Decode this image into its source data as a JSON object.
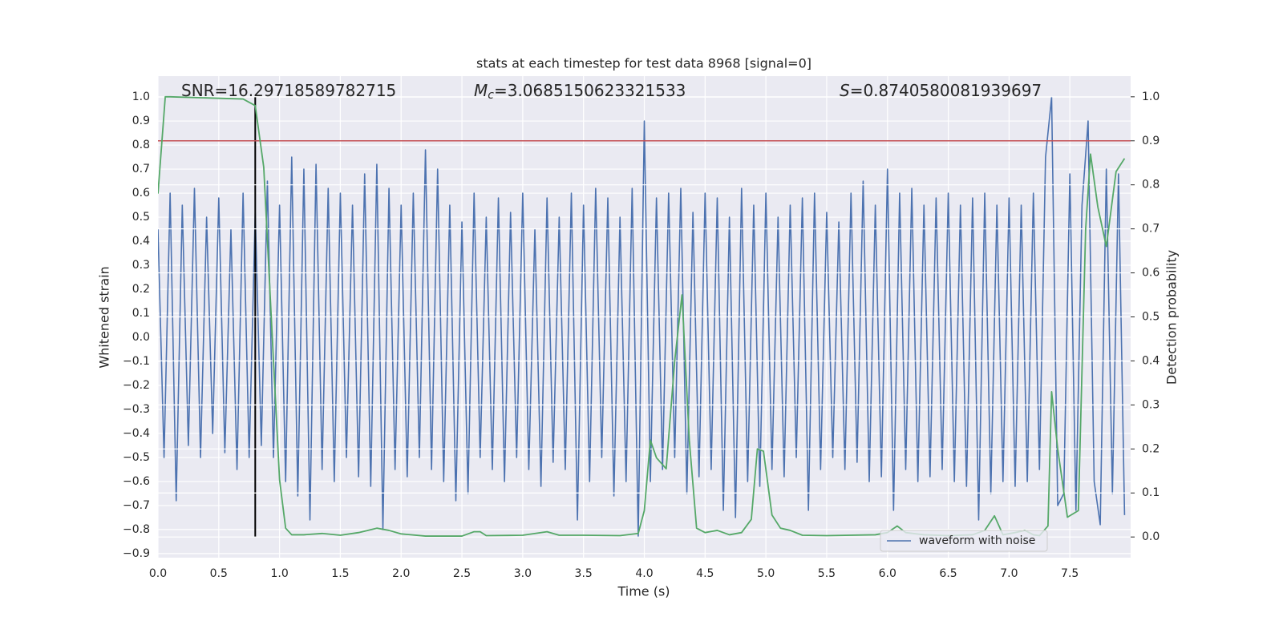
{
  "chart_data": {
    "type": "line",
    "title": "stats at each timestep for test data 8968 [signal=0]",
    "xlabel": "Time (s)",
    "ylabel": "Whitened strain",
    "y2label": "Detection probability",
    "annotations": [
      {
        "text": "SNR=16.29718589782715"
      },
      {
        "symbol": "M",
        "subscript": "c",
        "text": "=3.0685150623321533"
      },
      {
        "symbol": "S",
        "text": "=0.8740580081939697"
      }
    ],
    "xlim": [
      0,
      8
    ],
    "ylim": [
      -0.917,
      1.087
    ],
    "y2lim": [
      -0.047,
      1.047
    ],
    "xticks": [
      {
        "value": 0,
        "label": "0.0"
      },
      0.5,
      {
        "value": 1,
        "label": "1.0"
      },
      1.5,
      {
        "value": 2,
        "label": "2.0"
      },
      2.5,
      {
        "value": 3,
        "label": "3.0"
      },
      3.5,
      {
        "value": 4,
        "label": "4.0"
      },
      4.5,
      {
        "value": 5,
        "label": "5.0"
      },
      5.5,
      {
        "value": 6,
        "label": "6.0"
      },
      6.5,
      {
        "value": 7,
        "label": "7.0"
      },
      7.5
    ],
    "yticks": [
      {
        "value": -0.9,
        "label": "−0.9"
      },
      {
        "value": -0.8,
        "label": "−0.8"
      },
      {
        "value": -0.7,
        "label": "−0.7"
      },
      {
        "value": -0.6,
        "label": "−0.6"
      },
      {
        "value": -0.5,
        "label": "−0.5"
      },
      {
        "value": -0.4,
        "label": "−0.4"
      },
      {
        "value": -0.3,
        "label": "−0.3"
      },
      {
        "value": -0.2,
        "label": "−0.2"
      },
      {
        "value": -0.1,
        "label": "−0.1"
      },
      {
        "value": 0,
        "label": "0.0"
      },
      0.1,
      0.2,
      0.3,
      0.4,
      0.5,
      0.6,
      0.7,
      0.8,
      0.9,
      {
        "value": 1,
        "label": "1.0"
      }
    ],
    "y2ticks": [
      {
        "value": 0,
        "label": "0.0"
      },
      0.1,
      0.2,
      0.3,
      0.4,
      0.5,
      0.6,
      0.7,
      0.8,
      0.9,
      {
        "value": 1,
        "label": "1.0"
      }
    ],
    "grid": true,
    "legend": "lower right",
    "series": [
      {
        "name": "waveform with noise",
        "color": "#4c72b0",
        "x": [
          0,
          0.05,
          0.1,
          0.15,
          0.2,
          0.25,
          0.3,
          0.35,
          0.4,
          0.45,
          0.5,
          0.55,
          0.6,
          0.65,
          0.7,
          0.75,
          0.8,
          0.85,
          0.9,
          0.95,
          1,
          1.05,
          1.1,
          1.15,
          1.2,
          1.25,
          1.3,
          1.35,
          1.4,
          1.45,
          1.5,
          1.55,
          1.6,
          1.65,
          1.7,
          1.75,
          1.8,
          1.85,
          1.9,
          1.95,
          2,
          2.05,
          2.1,
          2.15,
          2.2,
          2.25,
          2.3,
          2.35,
          2.4,
          2.45,
          2.5,
          2.55,
          2.6,
          2.65,
          2.7,
          2.75,
          2.8,
          2.85,
          2.9,
          2.95,
          3,
          3.05,
          3.1,
          3.15,
          3.2,
          3.25,
          3.3,
          3.35,
          3.4,
          3.45,
          3.5,
          3.55,
          3.6,
          3.65,
          3.7,
          3.75,
          3.8,
          3.85,
          3.9,
          3.95,
          4,
          4.05,
          4.1,
          4.15,
          4.2,
          4.25,
          4.3,
          4.35,
          4.4,
          4.45,
          4.5,
          4.55,
          4.6,
          4.65,
          4.7,
          4.75,
          4.8,
          4.85,
          4.9,
          4.95,
          5,
          5.05,
          5.1,
          5.15,
          5.2,
          5.25,
          5.3,
          5.35,
          5.4,
          5.45,
          5.5,
          5.55,
          5.6,
          5.65,
          5.7,
          5.75,
          5.8,
          5.85,
          5.9,
          5.95,
          6,
          6.05,
          6.1,
          6.15,
          6.2,
          6.25,
          6.3,
          6.35,
          6.4,
          6.45,
          6.5,
          6.55,
          6.6,
          6.65,
          6.7,
          6.75,
          6.8,
          6.85,
          6.9,
          6.95,
          7,
          7.05,
          7.1,
          7.15,
          7.2,
          7.25,
          7.3,
          7.35,
          7.4,
          7.45,
          7.5,
          7.55,
          7.6,
          7.65,
          7.7,
          7.75,
          7.8,
          7.85,
          7.9,
          7.95
        ],
        "values": [
          0.45,
          -0.5,
          0.6,
          -0.68,
          0.55,
          -0.45,
          0.62,
          -0.5,
          0.5,
          -0.4,
          0.58,
          -0.48,
          0.45,
          -0.55,
          0.6,
          -0.5,
          0.52,
          -0.45,
          0.65,
          -0.5,
          0.55,
          -0.6,
          0.75,
          -0.66,
          0.7,
          -0.76,
          0.72,
          -0.55,
          0.62,
          -0.6,
          0.6,
          -0.5,
          0.55,
          -0.58,
          0.68,
          -0.62,
          0.72,
          -0.8,
          0.62,
          -0.55,
          0.55,
          -0.58,
          0.6,
          -0.5,
          0.78,
          -0.55,
          0.7,
          -0.6,
          0.55,
          -0.68,
          0.48,
          -0.65,
          0.6,
          -0.5,
          0.5,
          -0.55,
          0.58,
          -0.6,
          0.52,
          -0.5,
          0.6,
          -0.55,
          0.45,
          -0.62,
          0.58,
          -0.52,
          0.5,
          -0.55,
          0.6,
          -0.76,
          0.55,
          -0.6,
          0.62,
          -0.5,
          0.58,
          -0.66,
          0.5,
          -0.6,
          0.62,
          -0.83,
          0.9,
          -0.6,
          0.58,
          -0.55,
          0.6,
          -0.5,
          0.62,
          -0.65,
          0.52,
          -0.58,
          0.6,
          -0.55,
          0.58,
          -0.72,
          0.5,
          -0.75,
          0.62,
          -0.6,
          0.55,
          -0.62,
          0.6,
          -0.55,
          0.5,
          -0.58,
          0.55,
          -0.5,
          0.58,
          -0.72,
          0.6,
          -0.55,
          0.52,
          -0.5,
          0.48,
          -0.55,
          0.6,
          -0.52,
          0.65,
          -0.6,
          0.55,
          -0.58,
          0.7,
          -0.72,
          0.6,
          -0.55,
          0.62,
          -0.6,
          0.55,
          -0.58,
          0.58,
          -0.55,
          0.6,
          -0.6,
          0.55,
          -0.62,
          0.58,
          -0.76,
          0.6,
          -0.65,
          0.55,
          -0.6,
          0.58,
          -0.62,
          0.55,
          -0.6,
          0.6,
          -0.55,
          0.75,
          1.0,
          -0.7,
          -0.65,
          0.68,
          -0.72,
          0.55,
          0.9,
          -0.6,
          -0.78,
          0.7,
          -0.65,
          0.68,
          -0.74
        ]
      },
      {
        "color": "#55a868",
        "axis": "y2",
        "x": [
          0,
          0.06,
          0.1,
          0.7,
          0.8,
          0.87,
          0.95,
          1,
          1.05,
          1.1,
          1.2,
          1.35,
          1.5,
          1.65,
          1.8,
          1.9,
          2,
          2.2,
          2.5,
          2.6,
          2.65,
          2.7,
          3,
          3.2,
          3.3,
          3.5,
          3.8,
          3.95,
          4,
          4.05,
          4.1,
          4.18,
          4.25,
          4.31,
          4.37,
          4.43,
          4.5,
          4.6,
          4.7,
          4.8,
          4.88,
          4.93,
          4.98,
          5.05,
          5.12,
          5.2,
          5.3,
          5.5,
          5.9,
          6,
          6.08,
          6.15,
          6.3,
          6.5,
          6.7,
          6.8,
          6.88,
          6.95,
          7.05,
          7.13,
          7.2,
          7.25,
          7.32,
          7.35,
          7.4,
          7.48,
          7.57,
          7.63,
          7.67,
          7.73,
          7.8,
          7.88,
          7.95
        ],
        "values": [
          0.78,
          1.0,
          1.0,
          0.995,
          0.98,
          0.84,
          0.4,
          0.13,
          0.02,
          0.005,
          0.005,
          0.008,
          0.004,
          0.01,
          0.02,
          0.015,
          0.007,
          0.002,
          0.002,
          0.012,
          0.012,
          0.003,
          0.004,
          0.012,
          0.004,
          0.004,
          0.003,
          0.008,
          0.06,
          0.22,
          0.18,
          0.155,
          0.4,
          0.55,
          0.22,
          0.02,
          0.01,
          0.015,
          0.005,
          0.01,
          0.04,
          0.2,
          0.195,
          0.05,
          0.02,
          0.015,
          0.004,
          0.003,
          0.005,
          0.01,
          0.025,
          0.01,
          0.005,
          0.003,
          0.005,
          0.015,
          0.048,
          0.005,
          0.01,
          0.015,
          0.005,
          0.003,
          0.025,
          0.33,
          0.2,
          0.045,
          0.06,
          0.7,
          0.87,
          0.75,
          0.66,
          0.83,
          0.86
        ]
      }
    ],
    "threshold": {
      "value": 0.9,
      "axis": "y2",
      "color": "#c44e52"
    },
    "vline": {
      "x": 0.8,
      "ymin": -0.83,
      "ymax": 1.0,
      "color": "#000000"
    },
    "background": "#eaeaf2"
  }
}
